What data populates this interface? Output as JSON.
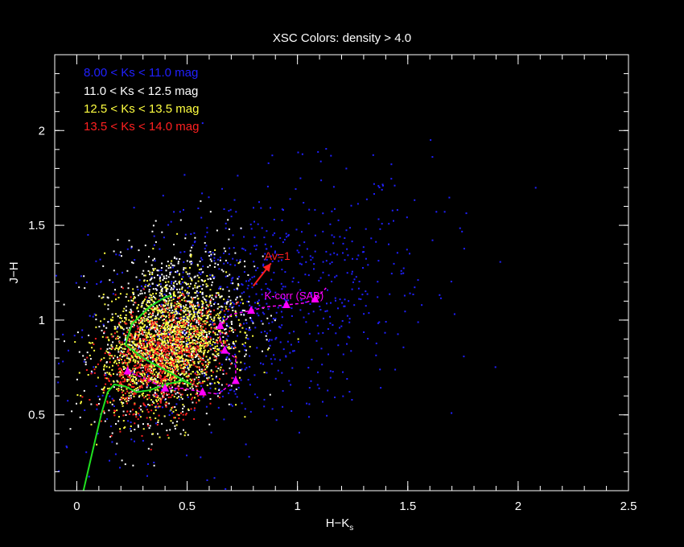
{
  "chart_data": {
    "type": "scatter",
    "title": "XSC Colors:  density > 4.0",
    "xlabel": "H−K",
    "xlabel_sub": "s",
    "ylabel": "J−H",
    "xlim": [
      -0.1,
      2.5
    ],
    "ylim": [
      0.1,
      2.4
    ],
    "x_ticks": [
      0,
      0.5,
      1,
      1.5,
      2,
      2.5
    ],
    "x_tick_labels": [
      "0",
      "0.5",
      "1",
      "1.5",
      "2",
      "2.5"
    ],
    "y_ticks": [
      0.5,
      1,
      1.5,
      2
    ],
    "y_tick_labels": [
      "0.5",
      "1",
      "1.5",
      "2"
    ],
    "grid": false,
    "legend_position": "top-left",
    "series": [
      {
        "name": "8.00 <  Ks < 11.0 mag",
        "color": "#2020ff",
        "cx": 0.75,
        "cy": 1.05,
        "sx": 0.42,
        "sy": 0.32,
        "n": 900
      },
      {
        "name": "11.0 < Ks < 12.5 mag",
        "color": "#ffffff",
        "cx": 0.42,
        "cy": 0.95,
        "sx": 0.16,
        "sy": 0.22,
        "n": 1100
      },
      {
        "name": "12.5 < Ks < 13.5 mag",
        "color": "#ffff40",
        "cx": 0.4,
        "cy": 0.87,
        "sx": 0.14,
        "sy": 0.16,
        "n": 1500
      },
      {
        "name": "13.5 <  Ks < 14.0 mag",
        "color": "#ff2020",
        "cx": 0.38,
        "cy": 0.8,
        "sx": 0.14,
        "sy": 0.14,
        "n": 800
      }
    ],
    "green_track": [
      [
        0.03,
        0.1
      ],
      [
        0.07,
        0.3
      ],
      [
        0.11,
        0.5
      ],
      [
        0.14,
        0.62
      ],
      [
        0.17,
        0.66
      ],
      [
        0.22,
        0.65
      ],
      [
        0.27,
        0.62
      ],
      [
        0.33,
        0.63
      ],
      [
        0.4,
        0.66
      ],
      [
        0.48,
        0.68
      ],
      [
        0.52,
        0.66
      ],
      [
        0.3,
        0.8
      ],
      [
        0.22,
        0.87
      ],
      [
        0.25,
        0.98
      ],
      [
        0.33,
        1.07
      ],
      [
        0.4,
        1.12
      ],
      [
        0.43,
        1.13
      ]
    ],
    "kcorr_track": [
      [
        0.23,
        0.73
      ],
      [
        0.33,
        0.68
      ],
      [
        0.4,
        0.64
      ],
      [
        0.48,
        0.64
      ],
      [
        0.57,
        0.62
      ],
      [
        0.64,
        0.61
      ],
      [
        0.72,
        0.68
      ],
      [
        0.72,
        0.8
      ],
      [
        0.67,
        0.84
      ],
      [
        0.65,
        0.9
      ],
      [
        0.65,
        0.97
      ],
      [
        0.7,
        1.03
      ],
      [
        0.79,
        1.05
      ],
      [
        0.86,
        1.07
      ],
      [
        0.95,
        1.08
      ],
      [
        1.03,
        1.09
      ],
      [
        1.08,
        1.11
      ],
      [
        1.13,
        1.17
      ]
    ],
    "kcorr_label": "K-corr (SAB)",
    "reddening_vector": {
      "label": "Av=1",
      "from": [
        0.8,
        1.18
      ],
      "to": [
        0.88,
        1.3
      ]
    },
    "colors": {
      "background": "#000000",
      "axes": "#ffffff",
      "kcorr": "#ff00ff",
      "green_track": "#20e020",
      "av_vector": "#ff2020"
    }
  }
}
